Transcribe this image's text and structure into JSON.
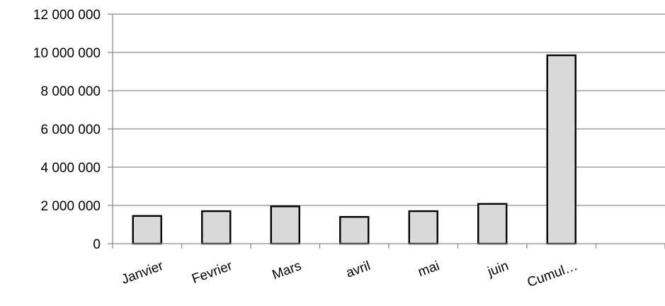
{
  "chart_data": {
    "type": "bar",
    "categories": [
      "Janvier",
      "Fevrier",
      "Mars",
      "avril",
      "mai",
      "juin",
      "Cumul…",
      ""
    ],
    "values": [
      1450000,
      1700000,
      1950000,
      1400000,
      1700000,
      2080000,
      9850000,
      null
    ],
    "y_tick_labels": [
      "0",
      "2 000 000",
      "4 000 000",
      "6 000 000",
      "8 000 000",
      "10 000 000",
      "12 000 000"
    ],
    "ylim": [
      0,
      12000000
    ],
    "y_tick_step": 2000000,
    "grid": true,
    "legend": "none",
    "colors": {
      "bar_fill": "#d9d9d9",
      "bar_stroke": "#000000",
      "grid": "#8c8c8c",
      "axis": "#8c8c8c"
    }
  }
}
